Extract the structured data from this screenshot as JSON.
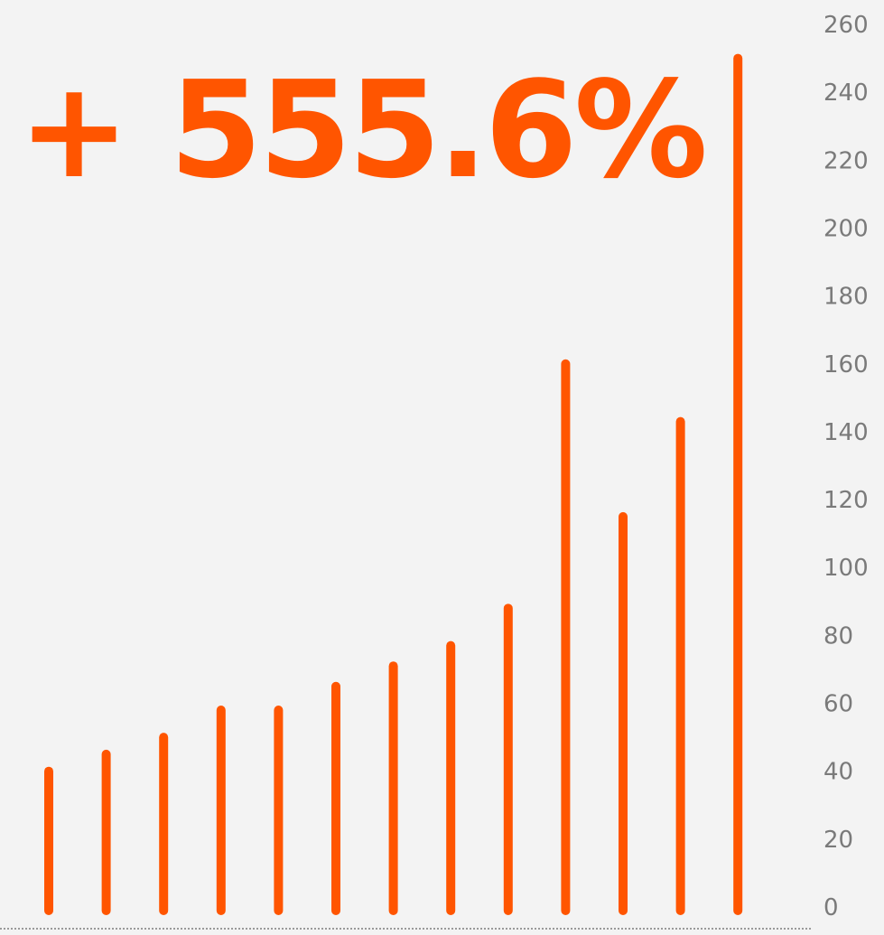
{
  "headline": "+ 555.6%",
  "colors": {
    "background": "#f3f3f3",
    "bar": "#ff5500",
    "tick_label": "#7a7a7a",
    "baseline": "#9a9a9a"
  },
  "chart_data": {
    "type": "bar",
    "orientation": "vertical",
    "values": [
      40,
      45,
      50,
      58,
      58,
      65,
      71,
      77,
      88,
      160,
      115,
      143,
      250
    ],
    "ylim": [
      0,
      260
    ],
    "yticks": [
      0,
      20,
      40,
      60,
      80,
      100,
      120,
      140,
      160,
      180,
      200,
      220,
      240,
      260
    ],
    "y_axis_position": "right",
    "grid": false,
    "baseline_style": "dotted",
    "title": "",
    "xlabel": "",
    "ylabel": ""
  }
}
